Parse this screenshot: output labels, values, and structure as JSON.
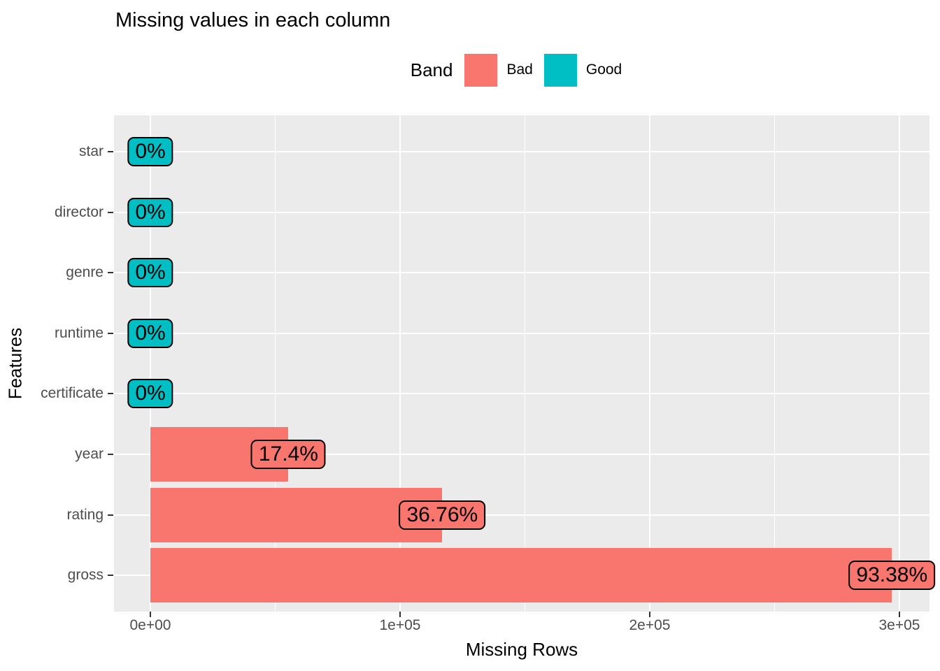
{
  "title": "Missing values in each column",
  "legend": {
    "title": "Band",
    "items": [
      {
        "label": "Bad",
        "color": "#F8766D"
      },
      {
        "label": "Good",
        "color": "#00BFC4"
      }
    ]
  },
  "axes": {
    "x": {
      "title": "Missing Rows",
      "tick_labels": [
        "0e+00",
        "1e+05",
        "2e+05",
        "3e+05"
      ],
      "tick_values": [
        0,
        100000,
        200000,
        300000
      ],
      "minor_values": [
        50000,
        150000,
        250000
      ]
    },
    "y": {
      "title": "Features",
      "categories": [
        "star",
        "director",
        "genre",
        "runtime",
        "certificate",
        "year",
        "rating",
        "gross"
      ]
    }
  },
  "chart_data": {
    "type": "bar",
    "orientation": "horizontal",
    "title": "Missing values in each column",
    "xlabel": "Missing Rows",
    "ylabel": "Features",
    "xlim": [
      0,
      312000
    ],
    "grid": true,
    "legend_position": "top-center",
    "legend_title": "Band",
    "band_colors": {
      "Bad": "#F8766D",
      "Good": "#00BFC4"
    },
    "rows": [
      {
        "feature": "star",
        "band": "Good",
        "missing_rows": 0,
        "percent_label": "0%"
      },
      {
        "feature": "director",
        "band": "Good",
        "missing_rows": 0,
        "percent_label": "0%"
      },
      {
        "feature": "genre",
        "band": "Good",
        "missing_rows": 0,
        "percent_label": "0%"
      },
      {
        "feature": "runtime",
        "band": "Good",
        "missing_rows": 0,
        "percent_label": "0%"
      },
      {
        "feature": "certificate",
        "band": "Good",
        "missing_rows": 0,
        "percent_label": "0%"
      },
      {
        "feature": "year",
        "band": "Bad",
        "missing_rows": 55300,
        "percent_label": "17.4%"
      },
      {
        "feature": "rating",
        "band": "Bad",
        "missing_rows": 116900,
        "percent_label": "36.76%"
      },
      {
        "feature": "gross",
        "band": "Bad",
        "missing_rows": 297000,
        "percent_label": "93.38%"
      }
    ]
  },
  "colors": {
    "bad": "#F8766D",
    "good": "#00BFC4",
    "panel_background": "#EBEBEB",
    "gridline": "#FFFFFF",
    "axis_text": "#4D4D4D",
    "tick_mark": "#333333",
    "text": "#000000"
  }
}
